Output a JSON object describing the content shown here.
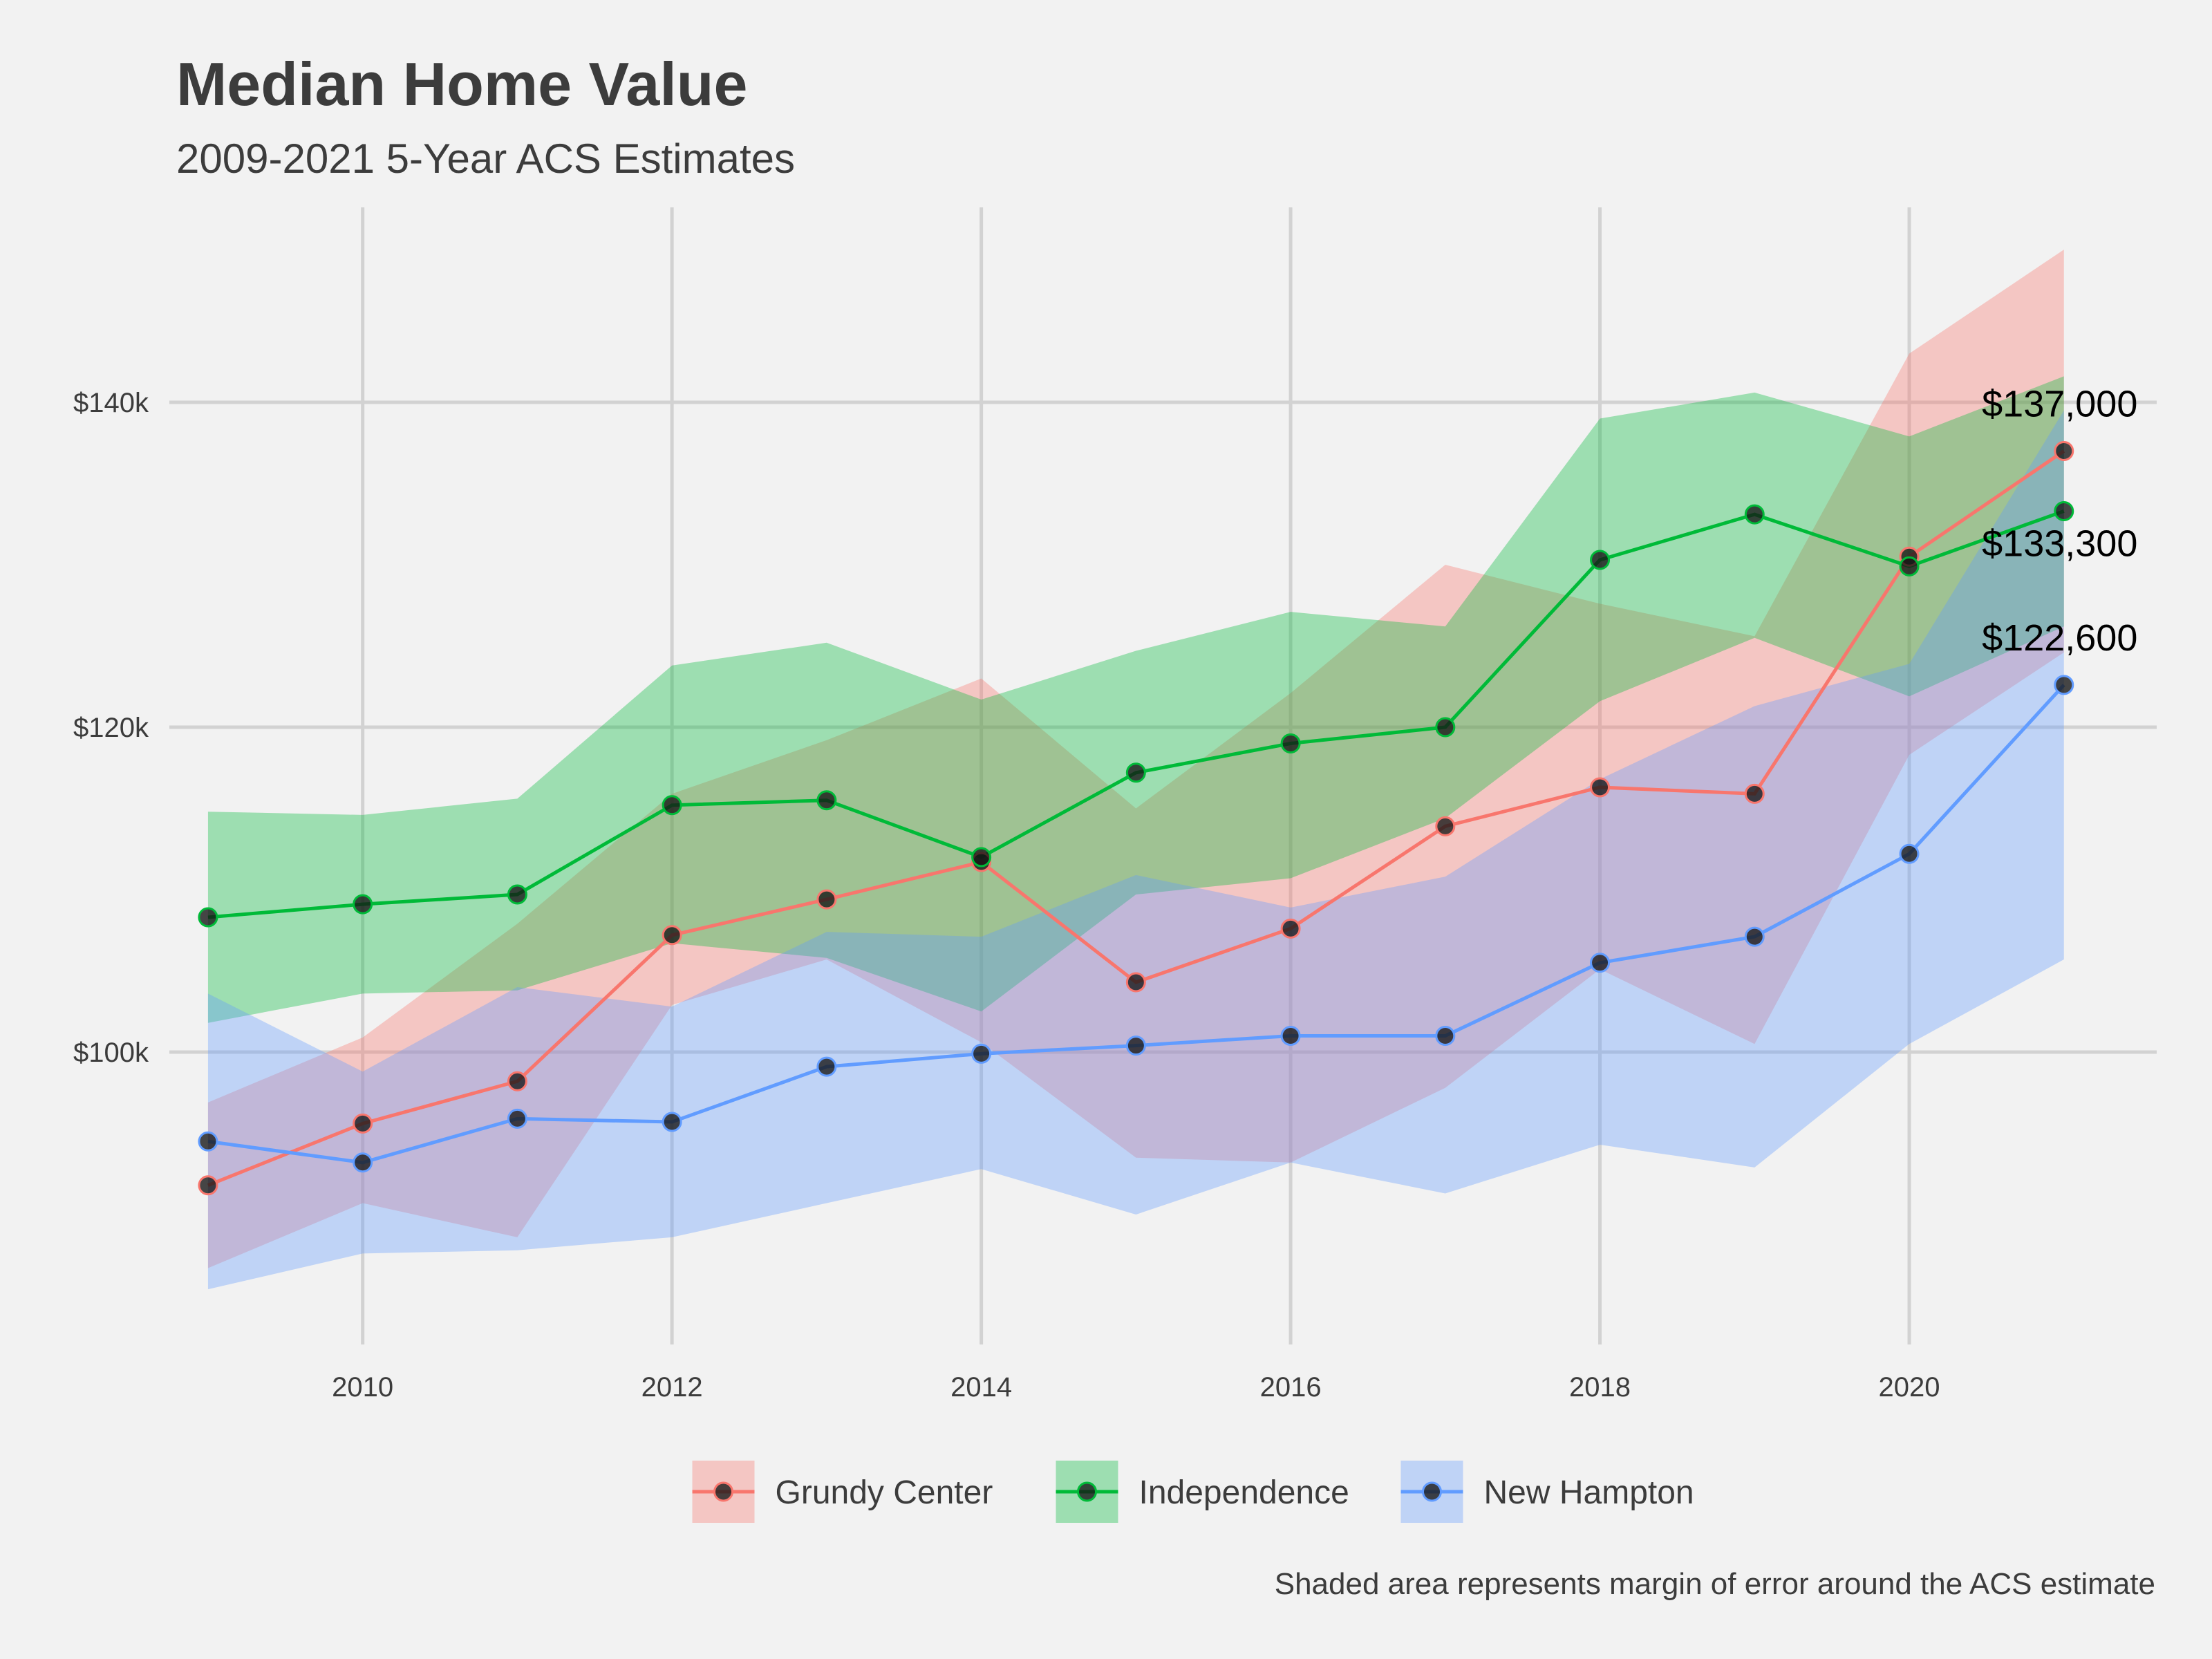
{
  "chart_data": {
    "type": "line",
    "title": "Median Home Value",
    "subtitle": "2009-2021 5-Year ACS Estimates",
    "caption": "Shaded area represents margin of error around the ACS estimate",
    "xlabel": "",
    "ylabel": "",
    "x": [
      2009,
      2010,
      2011,
      2012,
      2013,
      2014,
      2015,
      2016,
      2017,
      2018,
      2019,
      2020,
      2021
    ],
    "xticks": [
      2010,
      2012,
      2014,
      2016,
      2018,
      2020
    ],
    "xlim": [
      2008.75,
      2021.6
    ],
    "yticks": [
      100000,
      120000,
      140000
    ],
    "ytick_labels": [
      "$100k",
      "$120k",
      "$140k"
    ],
    "ylim": [
      82000,
      152000
    ],
    "grid": true,
    "legend_position": "bottom",
    "series": [
      {
        "name": "Grundy Center",
        "color": "#f8766d",
        "values": [
          91800,
          95600,
          98200,
          107200,
          109400,
          111700,
          104300,
          107600,
          113900,
          116300,
          115900,
          130500,
          137000
        ],
        "lower": [
          86700,
          90700,
          88600,
          102900,
          105700,
          100600,
          93500,
          93200,
          97800,
          105100,
          100500,
          118300,
          124600
        ],
        "upper": [
          96900,
          100900,
          107900,
          115900,
          119200,
          123000,
          115000,
          122100,
          130000,
          127600,
          125600,
          143000,
          149400
        ],
        "end_label": "$137,000"
      },
      {
        "name": "Independence",
        "color": "#00ba38",
        "values": [
          108300,
          109100,
          109700,
          115200,
          115500,
          112000,
          117200,
          119000,
          120000,
          130300,
          133100,
          129900,
          133300
        ],
        "lower": [
          101800,
          103600,
          103800,
          106700,
          105800,
          102500,
          109700,
          110700,
          114400,
          121600,
          125500,
          121900,
          126200
        ],
        "upper": [
          114800,
          114600,
          115600,
          123800,
          125200,
          121700,
          124700,
          127100,
          126200,
          139000,
          140600,
          137900,
          141600
        ],
        "end_label": "$133,300"
      },
      {
        "name": "New Hampton",
        "color": "#619cff",
        "values": [
          94500,
          93200,
          95900,
          95700,
          99100,
          99900,
          100400,
          101000,
          101000,
          105500,
          107100,
          112200,
          122600
        ],
        "lower": [
          85400,
          87600,
          87800,
          88600,
          90700,
          92800,
          90000,
          93200,
          91300,
          94300,
          92900,
          100500,
          105700
        ],
        "upper": [
          103600,
          98800,
          104000,
          102800,
          107400,
          107100,
          110900,
          108900,
          110800,
          116800,
          121300,
          123900,
          139500
        ],
        "end_label": "$122,600"
      }
    ]
  }
}
